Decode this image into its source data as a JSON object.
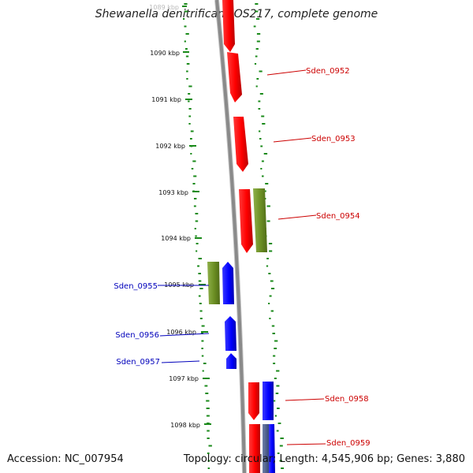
{
  "title": "Shewanella denitrificans OS217, complete genome",
  "footer": {
    "accession": "Accession: NC_007954",
    "summary": "Topology: circular; Length: 4,545,906 bp; Genes: 3,880"
  },
  "ticks": [
    {
      "label": "1089 kbp",
      "faded": true
    },
    {
      "label": "1090 kbp"
    },
    {
      "label": "1091 kbp"
    },
    {
      "label": "1092 kbp"
    },
    {
      "label": "1093 kbp"
    },
    {
      "label": "1094 kbp"
    },
    {
      "label": "1095 kbp"
    },
    {
      "label": "1096 kbp"
    },
    {
      "label": "1097 kbp"
    },
    {
      "label": "1098 kbp"
    }
  ],
  "genes": [
    {
      "name": "Sden_0952",
      "strand": "+",
      "color": "#cc0000"
    },
    {
      "name": "Sden_0953",
      "strand": "+",
      "color": "#cc0000"
    },
    {
      "name": "Sden_0954",
      "strand": "+",
      "color": "#cc0000"
    },
    {
      "name": "Sden_0955",
      "strand": "-",
      "color": "#0000bb"
    },
    {
      "name": "Sden_0956",
      "strand": "-",
      "color": "#0000bb"
    },
    {
      "name": "Sden_0957",
      "strand": "-",
      "color": "#0000bb"
    },
    {
      "name": "Sden_0958",
      "strand": "+",
      "color": "#cc0000"
    },
    {
      "name": "Sden_0959",
      "strand": "+",
      "color": "#cc0000"
    }
  ],
  "colors": {
    "forward_gene": "#ff0000",
    "reverse_gene": "#0000ff",
    "cds_feature": "#6b8e23",
    "gc_dots": "#1a8a1a",
    "backbone": "#888888",
    "forward_label": "#cc0000",
    "reverse_label": "#0000bb"
  }
}
